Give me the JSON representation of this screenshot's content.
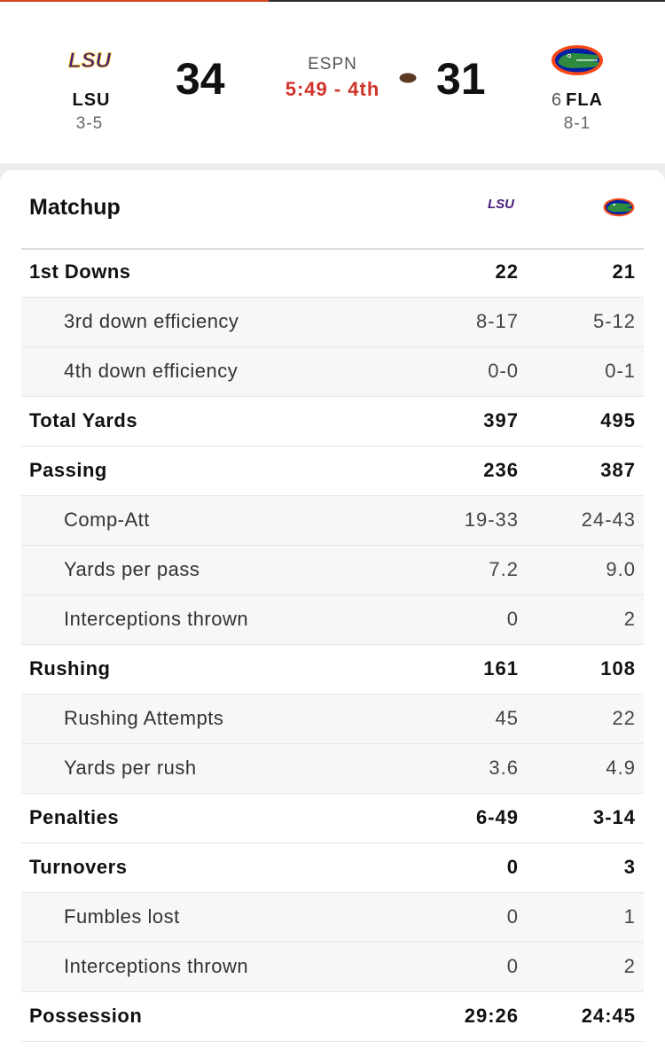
{
  "colors": {
    "accent": "#d2461f",
    "clock": "#d0332a",
    "lsu_purple": "#461d7c",
    "lsu_gold": "#fdd023",
    "fla_orange": "#fa4616",
    "fla_blue": "#0021a5",
    "fla_green": "#2d8a3e"
  },
  "game": {
    "network": "ESPN",
    "clock": "5:49 - 4th",
    "possession": "football-icon",
    "away": {
      "logo_text": "LSU",
      "abbr": "LSU",
      "rank": "",
      "record": "3-5",
      "score": "34"
    },
    "home": {
      "abbr": "FLA",
      "rank": "6",
      "record": "8-1",
      "score": "31"
    }
  },
  "matchup": {
    "title": "Matchup",
    "away_logo_text": "LSU",
    "rows": [
      {
        "label": "1st Downs",
        "away": "22",
        "home": "21",
        "type": "main"
      },
      {
        "label": "3rd down efficiency",
        "away": "8-17",
        "home": "5-12",
        "type": "sub"
      },
      {
        "label": "4th down efficiency",
        "away": "0-0",
        "home": "0-1",
        "type": "sub"
      },
      {
        "label": "Total Yards",
        "away": "397",
        "home": "495",
        "type": "main"
      },
      {
        "label": "Passing",
        "away": "236",
        "home": "387",
        "type": "main"
      },
      {
        "label": "Comp-Att",
        "away": "19-33",
        "home": "24-43",
        "type": "sub"
      },
      {
        "label": "Yards per pass",
        "away": "7.2",
        "home": "9.0",
        "type": "sub"
      },
      {
        "label": "Interceptions thrown",
        "away": "0",
        "home": "2",
        "type": "sub"
      },
      {
        "label": "Rushing",
        "away": "161",
        "home": "108",
        "type": "main"
      },
      {
        "label": "Rushing Attempts",
        "away": "45",
        "home": "22",
        "type": "sub"
      },
      {
        "label": "Yards per rush",
        "away": "3.6",
        "home": "4.9",
        "type": "sub"
      },
      {
        "label": "Penalties",
        "away": "6-49",
        "home": "3-14",
        "type": "main"
      },
      {
        "label": "Turnovers",
        "away": "0",
        "home": "3",
        "type": "main"
      },
      {
        "label": "Fumbles lost",
        "away": "0",
        "home": "1",
        "type": "sub"
      },
      {
        "label": "Interceptions thrown",
        "away": "0",
        "home": "2",
        "type": "sub"
      },
      {
        "label": "Possession",
        "away": "29:26",
        "home": "24:45",
        "type": "main"
      }
    ]
  }
}
